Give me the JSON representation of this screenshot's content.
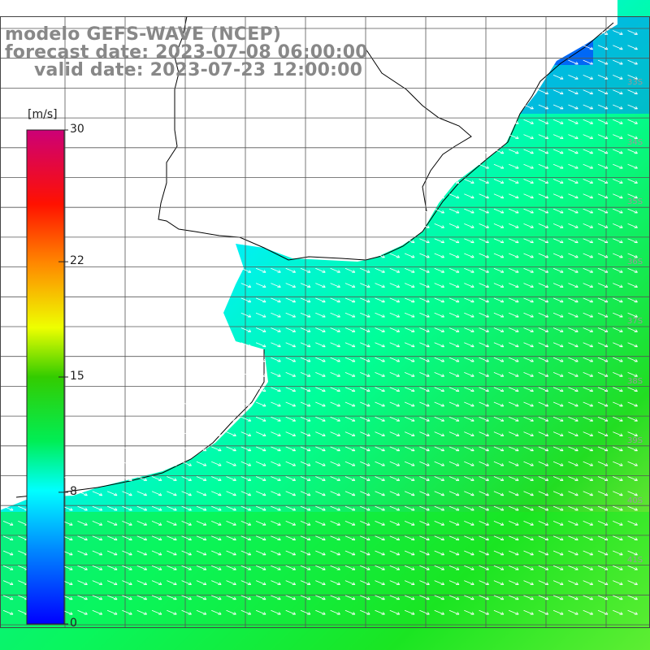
{
  "header": {
    "line1": "modelo GEFS-WAVE (NCEP)",
    "line2": "forecast date: 2023-07-08 06:00:00",
    "line3": "valid date: 2023-07-23 12:00:00"
  },
  "colorbar": {
    "unit": "[m/s]",
    "ticks": [
      {
        "label": "30",
        "value": 30
      },
      {
        "label": "22",
        "value": 22
      },
      {
        "label": "15",
        "value": 15
      },
      {
        "label": "8",
        "value": 8
      },
      {
        "label": "0",
        "value": 0
      }
    ],
    "range": [
      0,
      30
    ],
    "stops": [
      "#0000ff",
      "#00aaff",
      "#00ffff",
      "#00dd44",
      "#22cc00",
      "#ffff00",
      "#ff8800",
      "#ff0000",
      "#cc0077"
    ]
  },
  "latitude_labels": [
    "33S",
    "34S",
    "35S",
    "36S",
    "37S",
    "38S",
    "39S",
    "40S",
    "41S"
  ],
  "colors": {
    "land": "#ffffff",
    "grid": "#555555",
    "coast": "#000000",
    "arrow": "#ffffff",
    "title": "#888888"
  }
}
